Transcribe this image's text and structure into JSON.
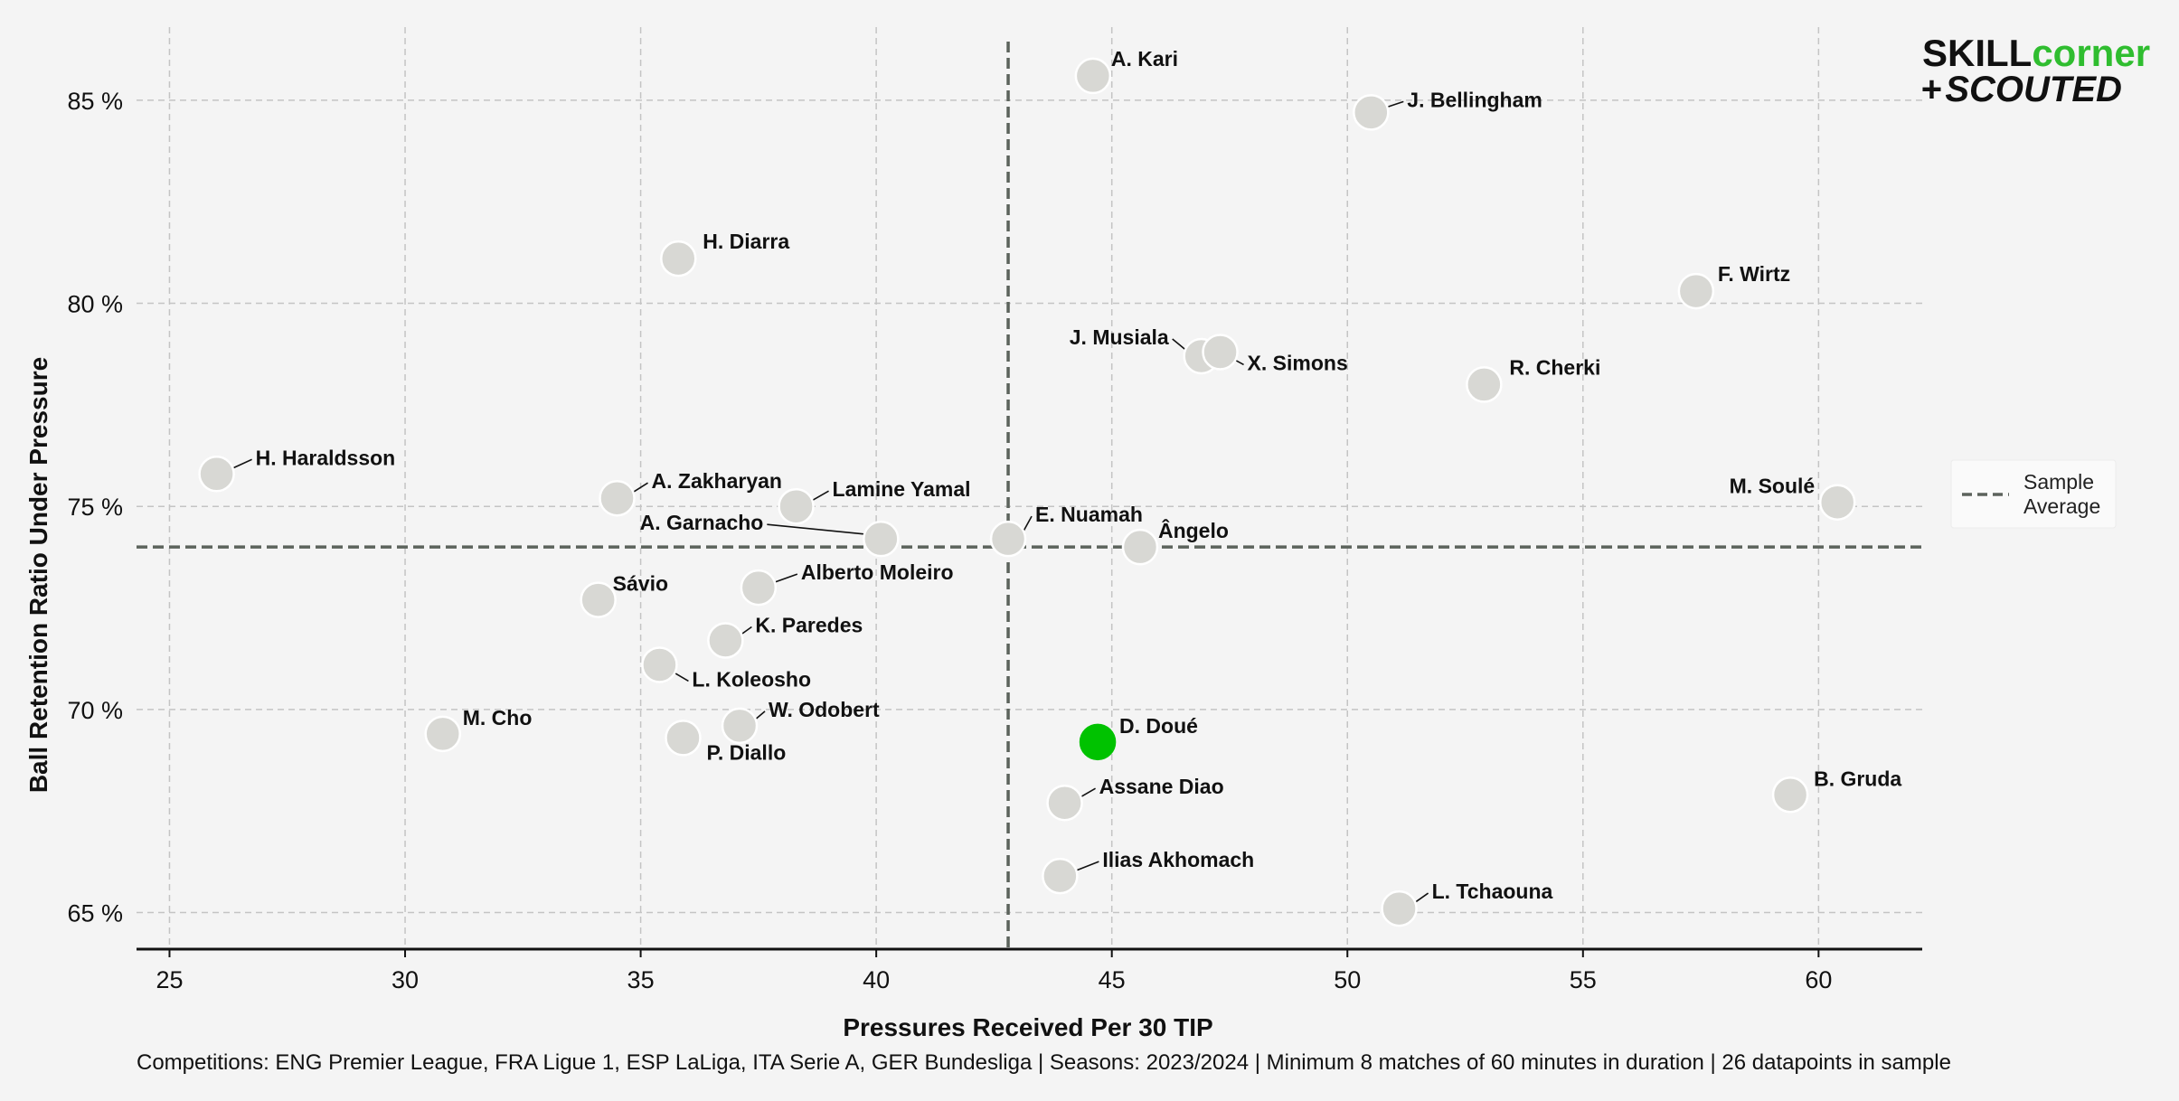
{
  "chart_data": {
    "type": "scatter",
    "xlabel": "Pressures Received Per 30 TIP",
    "ylabel": "Ball Retention Ratio Under Pressure",
    "xlim": [
      24.3,
      62.2
    ],
    "ylim": [
      64.1,
      86.8
    ],
    "x_ticks": [
      25,
      30,
      35,
      40,
      45,
      50,
      55,
      60
    ],
    "y_ticks": [
      65,
      70,
      75,
      80,
      85
    ],
    "x_tick_labels": [
      "25",
      "30",
      "35",
      "40",
      "45",
      "50",
      "55",
      "60"
    ],
    "y_tick_labels": [
      "65 %",
      "70 %",
      "75 %",
      "80 %",
      "85 %"
    ],
    "grid": true,
    "average": {
      "x": 42.8,
      "y": 74.0
    },
    "legend": {
      "position": "right",
      "label": "Sample\nAverage"
    },
    "highlight_color": "#00c200",
    "point_color": "#d8d8d4",
    "accent_color": "#2fbd2f",
    "points": [
      {
        "name": "A. Kari",
        "x": 44.6,
        "y": 85.6
      },
      {
        "name": "J. Bellingham",
        "x": 50.5,
        "y": 84.7
      },
      {
        "name": "H. Diarra",
        "x": 35.8,
        "y": 81.1
      },
      {
        "name": "F. Wirtz",
        "x": 57.4,
        "y": 80.3
      },
      {
        "name": "J. Musiala",
        "x": 46.9,
        "y": 78.7
      },
      {
        "name": "X. Simons",
        "x": 47.3,
        "y": 78.8
      },
      {
        "name": "R. Cherki",
        "x": 52.9,
        "y": 78.0
      },
      {
        "name": "H. Haraldsson",
        "x": 26.0,
        "y": 75.8
      },
      {
        "name": "A. Zakharyan",
        "x": 34.5,
        "y": 75.2
      },
      {
        "name": "Lamine Yamal",
        "x": 38.3,
        "y": 75.0
      },
      {
        "name": "M. Soulé",
        "x": 60.4,
        "y": 75.1
      },
      {
        "name": "A. Garnacho",
        "x": 40.1,
        "y": 74.2
      },
      {
        "name": "E. Nuamah",
        "x": 42.8,
        "y": 74.2
      },
      {
        "name": "Ângelo",
        "x": 45.6,
        "y": 74.0
      },
      {
        "name": "Alberto Moleiro",
        "x": 37.5,
        "y": 73.0
      },
      {
        "name": "Sávio",
        "x": 34.1,
        "y": 72.7
      },
      {
        "name": "K. Paredes",
        "x": 36.8,
        "y": 71.7
      },
      {
        "name": "L. Koleosho",
        "x": 35.4,
        "y": 71.1
      },
      {
        "name": "M. Cho",
        "x": 30.8,
        "y": 69.4
      },
      {
        "name": "W. Odobert",
        "x": 37.1,
        "y": 69.6
      },
      {
        "name": "P. Diallo",
        "x": 35.9,
        "y": 69.3
      },
      {
        "name": "D. Doué",
        "x": 44.7,
        "y": 69.2,
        "highlight": true
      },
      {
        "name": "Assane Diao",
        "x": 44.0,
        "y": 67.7
      },
      {
        "name": "B. Gruda",
        "x": 59.4,
        "y": 67.9
      },
      {
        "name": "Ilias Akhomach",
        "x": 43.9,
        "y": 65.9
      },
      {
        "name": "L. Tchaouna",
        "x": 51.1,
        "y": 65.1
      }
    ]
  },
  "footnote": "Competitions: ENG Premier League, FRA Ligue 1, ESP LaLiga, ITA Serie A, GER Bundesliga | Seasons: 2023/2024 | Minimum 8 matches of 60 minutes in duration | 26 datapoints in sample",
  "logo": {
    "skill": "SKILL",
    "corner": "corner",
    "plus": "+",
    "scouted": "SCOUTED"
  }
}
